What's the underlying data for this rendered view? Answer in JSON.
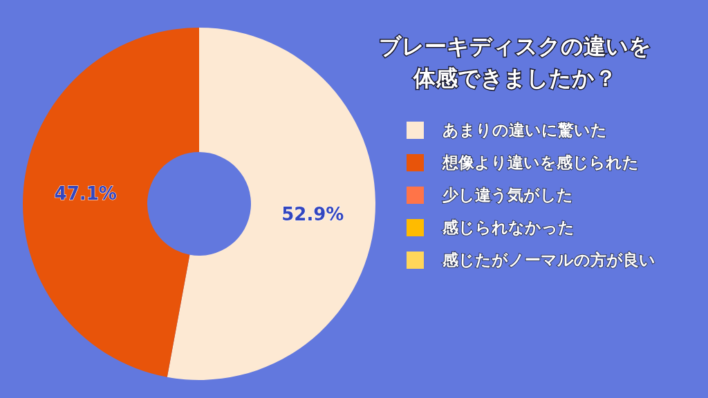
{
  "chart_data": {
    "type": "donut",
    "title": "ブレーキディスクの違いを体感できましたか？",
    "categories": [
      "あまりの違いに驚いた",
      "想像より違いを感じられた",
      "少し違う気がした",
      "感じられなかった",
      "感じたがノーマルの方が良い"
    ],
    "values": [
      52.9,
      47.1,
      0,
      0,
      0
    ],
    "colors": [
      "#fde9d3",
      "#e8540a",
      "#ff7448",
      "#ffbb00",
      "#ffd65a"
    ],
    "value_labels": [
      "52.9%",
      "47.1%",
      null,
      null,
      null
    ],
    "legend": "right"
  }
}
